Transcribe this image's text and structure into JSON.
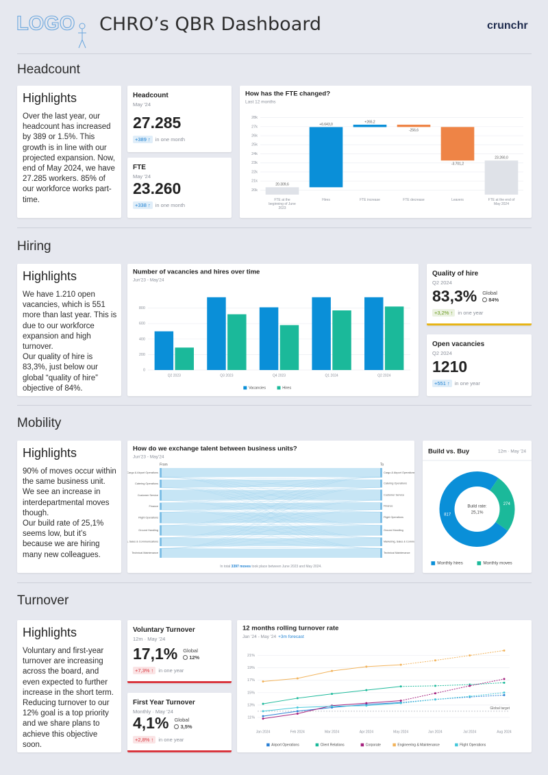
{
  "header": {
    "logo": "LOGO",
    "title": "CHRO’s QBR Dashboard",
    "brand": "crunchr"
  },
  "sections": [
    {
      "title": "Headcount",
      "highlights": {
        "title": "Highlights",
        "paragraphs": [
          "Over the last year, our headcount has increased by 389 or 1.5%. This growth is in line with our projected expansion. Now, end of May 2024, we have 27.285 workers. 85% of our workforce works part-time."
        ]
      },
      "kpis": [
        {
          "title": "Headcount",
          "period": "May '24",
          "value": "27.285",
          "delta": "+389 ↑",
          "note": "in one month",
          "delta_color": "#1a7fd1"
        },
        {
          "title": "FTE",
          "period": "May '24",
          "value": "23.260",
          "delta": "+338 ↑",
          "note": "in one month",
          "delta_color": "#1a7fd1"
        }
      ]
    },
    {
      "title": "Hiring",
      "highlights": {
        "title": "Highlights",
        "paragraphs": [
          "We have 1.210 open vacancies, which is 551 more than last year. This is due to our workforce expansion and high turnover.",
          "Our quality of hire is 83,3%, just below our global “quality of hire” objective of 84%."
        ]
      },
      "kpis": [
        {
          "title": "Quality of hire",
          "period": "Q2 2024",
          "value": "83,3%",
          "global_label": "Global",
          "global_value": "84%",
          "delta": "+3,2% ↑",
          "note": "in one year",
          "delta_color": "#6a9a1f",
          "accent": "#e7b416"
        },
        {
          "title": "Open vacancies",
          "period": "Q2 2024",
          "value": "1210",
          "delta": "+551 ↑",
          "note": "in one year",
          "delta_color": "#1a7fd1"
        }
      ]
    },
    {
      "title": "Mobility",
      "highlights": {
        "title": "Highlights",
        "paragraphs": [
          "90% of moves occur within the same business unit. We see an increase in interdepartmental moves though.",
          "Our build rate of 25,1% seems low, but it’s because we are hiring many new colleagues."
        ]
      },
      "kpis": []
    },
    {
      "title": "Turnover",
      "highlights": {
        "title": "Highlights",
        "paragraphs": [
          "Voluntary and first-year turnover are increasing across the board, and even expected to further increase in the short term. Reducing turnover to our 12% goal is a top priority and we share plans to achieve this objective soon."
        ]
      },
      "kpis": [
        {
          "title": "Voluntary Turnover",
          "period": "12m · May '24",
          "value": "17,1%",
          "global_label": "Global",
          "global_value": "12%",
          "delta": "+7,3% ↑",
          "note": "in one year",
          "delta_color": "#d9363e",
          "accent": "#d9363e"
        },
        {
          "title": "First Year Turnover",
          "period": "Monthly · May '24",
          "value": "4,1%",
          "global_label": "Global",
          "global_value": "3,5%",
          "delta": "+2,8% ↑",
          "note": "in one year",
          "delta_color": "#d9363e",
          "accent": "#d9363e"
        }
      ]
    }
  ],
  "chart_data": [
    {
      "type": "waterfall",
      "title": "How has the FTE changed?",
      "subtitle": "Last 12 months",
      "categories": [
        "FTE at the beginning of June 2023",
        "Hires",
        "FTE increase",
        "FTE decrease",
        "Leavers",
        "FTE at the end of May 2024"
      ],
      "values": [
        20309.6,
        6643.0,
        265.2,
        -256.6,
        -3701.2,
        23260.0
      ],
      "value_labels": [
        "20.309,6",
        "+6.643,0",
        "+265,2",
        "-256,6",
        "-3.701,2",
        "23.260,0"
      ],
      "colors": [
        "#dfe2e8",
        "#0a8fd8",
        "#0a8fd8",
        "#ee8446",
        "#ee8446",
        "#dfe2e8"
      ],
      "ylim": [
        19500,
        28500
      ],
      "yticks": [
        {
          "value": 20000,
          "label": "20k"
        },
        {
          "value": 21000,
          "label": "21k"
        },
        {
          "value": 22000,
          "label": "22k"
        },
        {
          "value": 23000,
          "label": "23k"
        },
        {
          "value": 24000,
          "label": "24k"
        },
        {
          "value": 25000,
          "label": "25k"
        },
        {
          "value": 26000,
          "label": "26k"
        },
        {
          "value": 27000,
          "label": "27k"
        },
        {
          "value": 28000,
          "label": "28k"
        }
      ],
      "grid": true
    },
    {
      "type": "bar",
      "title": "Number of vacancies and hires over time",
      "subtitle": "Jun'23 - May'24",
      "categories": [
        "Q2 2023",
        "Q3 2023",
        "Q4 2023",
        "Q1 2024",
        "Q2 2024"
      ],
      "series": [
        {
          "name": "Vacancies",
          "color": "#0a8fd8",
          "values": [
            500,
            940,
            810,
            940,
            940
          ]
        },
        {
          "name": "Hires",
          "color": "#1bb99a",
          "values": [
            290,
            720,
            580,
            770,
            820
          ]
        }
      ],
      "ylim": [
        0,
        1000
      ],
      "yticks": [
        0,
        200,
        400,
        600,
        800
      ],
      "grid": true
    },
    {
      "type": "sankey",
      "title": "How do we exchange talent between business units?",
      "subtitle": "Jun'23 - May'24",
      "from_label": "From",
      "to_label": "To",
      "footer": [
        "In total ",
        "3397 moves",
        " took place between June 2023 and May 2024."
      ],
      "nodes": [
        "Cargo & Airport Operations",
        "Catering Operations",
        "Customer Service",
        "Finance",
        "Flight Operations",
        "Ground Handling",
        "Marketing, Sales & Communications",
        "Technical Maintenance"
      ],
      "values": [
        [
          400,
          4,
          6,
          3,
          5,
          8,
          2,
          4
        ],
        [
          5,
          336,
          9,
          2,
          3,
          6,
          4,
          3
        ],
        [
          4,
          7,
          448,
          5,
          6,
          5,
          8,
          3
        ],
        [
          2,
          3,
          6,
          303,
          2,
          3,
          7,
          2
        ],
        [
          3,
          2,
          4,
          3,
          474,
          6,
          3,
          5
        ],
        [
          7,
          5,
          6,
          2,
          4,
          430,
          5,
          6
        ],
        [
          2,
          3,
          9,
          6,
          3,
          4,
          356,
          2
        ],
        [
          4,
          2,
          3,
          2,
          6,
          5,
          2,
          409
        ]
      ],
      "color": "#8ecbec"
    },
    {
      "type": "donut",
      "title": "Build vs. Buy",
      "subtitle": "12m · May '24",
      "center_label": "Build rate:",
      "center_value": "25,1%",
      "categories": [
        "Monthly hires",
        "Monthly moves"
      ],
      "values": [
        817,
        274
      ],
      "colors": [
        "#0a8fd8",
        "#1bb99a"
      ]
    },
    {
      "type": "line",
      "title": "12 months rolling turnover rate",
      "subtitle": "Jan '24 - May '24",
      "forecast_label": "+3m forecast",
      "categories": [
        "Jan 2024",
        "Feb 2024",
        "Mar 2024",
        "Apr 2024",
        "May 2024",
        "Jun 2024",
        "Jul 2024",
        "Aug 2024"
      ],
      "series": [
        {
          "name": "Airport Operations",
          "color": "#2a7fd4",
          "values": [
            11.2,
            12.0,
            12.6,
            13.1,
            13.4,
            null,
            null,
            null
          ],
          "forecast": [
            null,
            null,
            null,
            null,
            null,
            13.9,
            14.3,
            14.6
          ]
        },
        {
          "name": "Client Relations",
          "color": "#1bb99a",
          "values": [
            13.2,
            14.1,
            14.8,
            15.4,
            16.0,
            null,
            null,
            null
          ],
          "forecast": [
            null,
            null,
            null,
            null,
            null,
            16.1,
            16.3,
            16.6
          ]
        },
        {
          "name": "Corporate",
          "color": "#a4207d",
          "values": [
            10.8,
            11.6,
            12.9,
            13.3,
            13.7,
            null,
            null,
            null
          ],
          "forecast": [
            null,
            null,
            null,
            null,
            null,
            14.9,
            16.1,
            17.2
          ]
        },
        {
          "name": "Engineering & Maintenance",
          "color": "#f2b35b",
          "values": [
            16.8,
            17.3,
            18.5,
            19.2,
            19.5,
            null,
            null,
            null
          ],
          "forecast": [
            null,
            null,
            null,
            null,
            null,
            20.2,
            21.0,
            21.8
          ]
        },
        {
          "name": "Flight Operations",
          "color": "#45c7d9",
          "values": [
            12.0,
            12.6,
            12.8,
            12.9,
            13.3,
            null,
            null,
            null
          ],
          "forecast": [
            null,
            null,
            null,
            null,
            null,
            13.9,
            14.4,
            15.0
          ]
        }
      ],
      "target": {
        "value": 12,
        "label": "Global target"
      },
      "ylim": [
        10,
        22.5
      ],
      "yticks": [
        {
          "value": 11,
          "label": "11%"
        },
        {
          "value": 13,
          "label": "13%"
        },
        {
          "value": 15,
          "label": "15%"
        },
        {
          "value": 17,
          "label": "17%"
        },
        {
          "value": 19,
          "label": "19%"
        },
        {
          "value": 21,
          "label": "21%"
        }
      ],
      "grid": true
    }
  ]
}
